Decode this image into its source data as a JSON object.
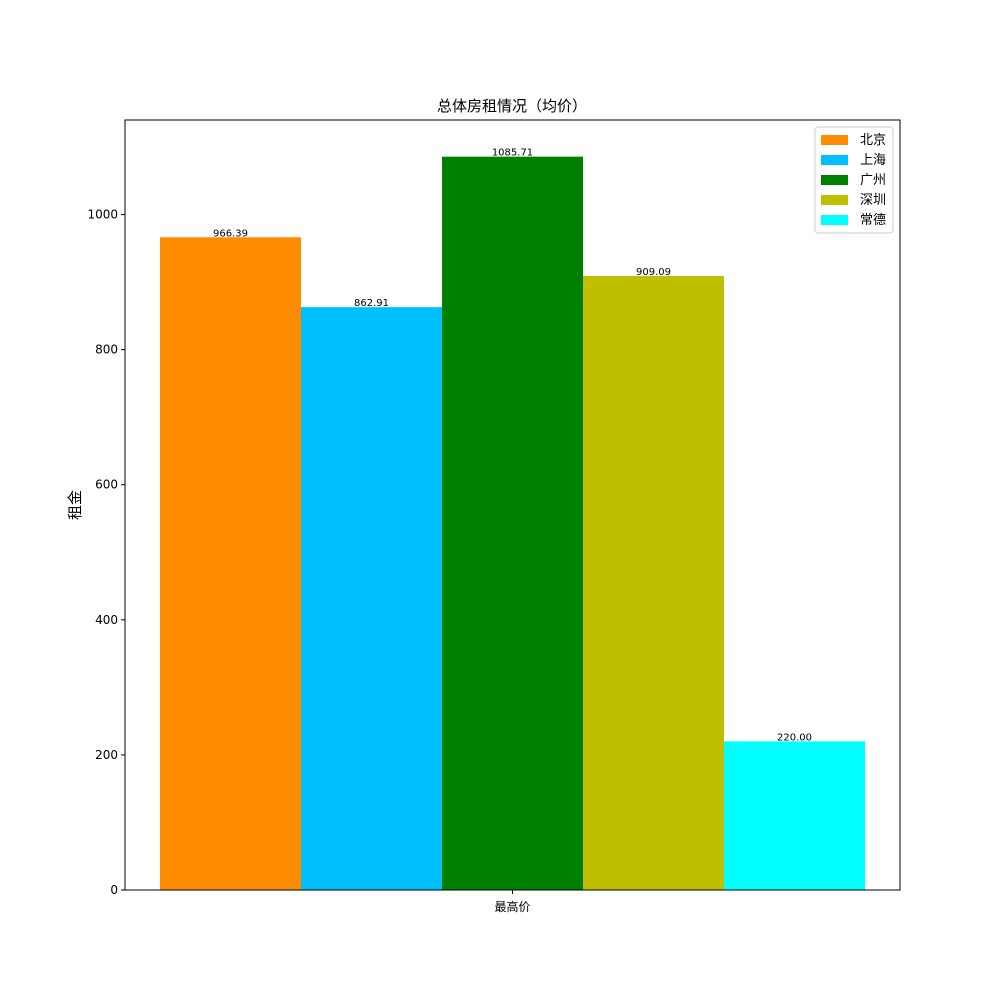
{
  "chart_data": {
    "type": "bar",
    "title": "总体房租情况（均价）",
    "xlabel": "",
    "ylabel": "租金",
    "categories": [
      "最高价"
    ],
    "series": [
      {
        "name": "北京",
        "values": [
          966.39
        ],
        "label": "966.39",
        "color": "#ff8c00"
      },
      {
        "name": "上海",
        "values": [
          862.91
        ],
        "label": "862.91",
        "color": "#00bfff"
      },
      {
        "name": "广州",
        "values": [
          1085.71
        ],
        "label": "1085.71",
        "color": "#008000"
      },
      {
        "name": "深圳",
        "values": [
          909.09
        ],
        "label": "909.09",
        "color": "#bfbf00"
      },
      {
        "name": "常德",
        "values": [
          220.0
        ],
        "label": "220.00",
        "color": "#00ffff"
      }
    ],
    "ylim": [
      0,
      1140
    ],
    "yticks": [
      0,
      200,
      400,
      600,
      800,
      1000
    ],
    "ytick_labels": [
      "0",
      "200",
      "400",
      "600",
      "800",
      "1000"
    ],
    "grid": false,
    "legend_position": "top-right"
  }
}
